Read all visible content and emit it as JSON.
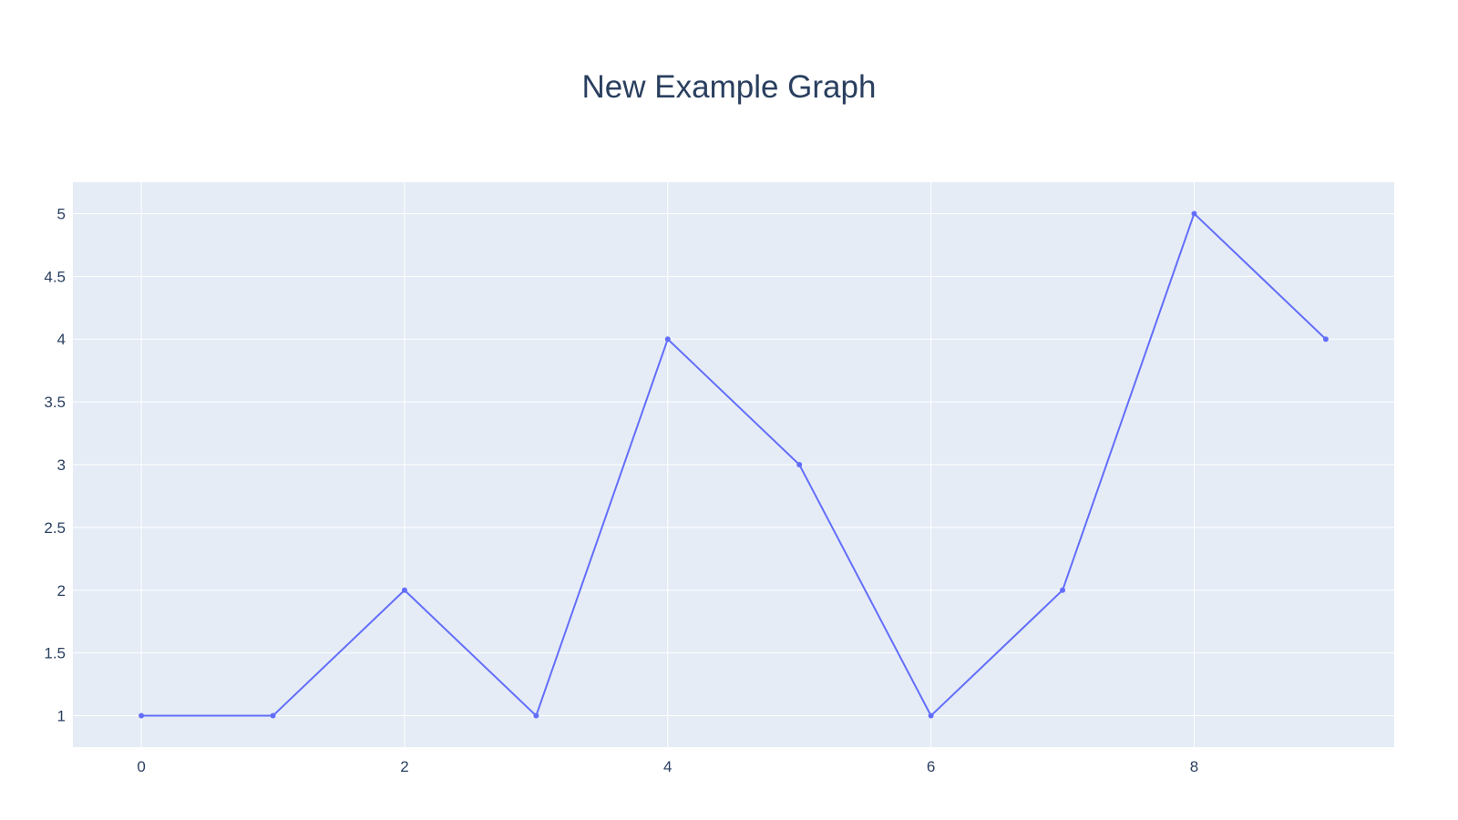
{
  "chart_data": {
    "type": "line",
    "title": "New Example Graph",
    "xlabel": "",
    "ylabel": "",
    "x": [
      0,
      1,
      2,
      3,
      4,
      5,
      6,
      7,
      8,
      9
    ],
    "series": [
      {
        "values": [
          1,
          1,
          2,
          1,
          4,
          3,
          1,
          2,
          5,
          4
        ],
        "color": "#636efa"
      }
    ],
    "xlim": [
      -0.52,
      9.52
    ],
    "ylim": [
      0.75,
      5.25
    ],
    "x_ticks": [
      0,
      2,
      4,
      6,
      8
    ],
    "x_tick_labels": [
      "0",
      "2",
      "4",
      "6",
      "8"
    ],
    "y_ticks": [
      1,
      1.5,
      2,
      2.5,
      3,
      3.5,
      4,
      4.5,
      5
    ],
    "y_tick_labels": [
      "1",
      "1.5",
      "2",
      "2.5",
      "3",
      "3.5",
      "4",
      "4.5",
      "5"
    ],
    "grid": true,
    "legend": "none",
    "plot_background": "#e5ecf6",
    "gridline_color": "#ffffff",
    "text_color": "#2a3f5f",
    "markers": true
  }
}
